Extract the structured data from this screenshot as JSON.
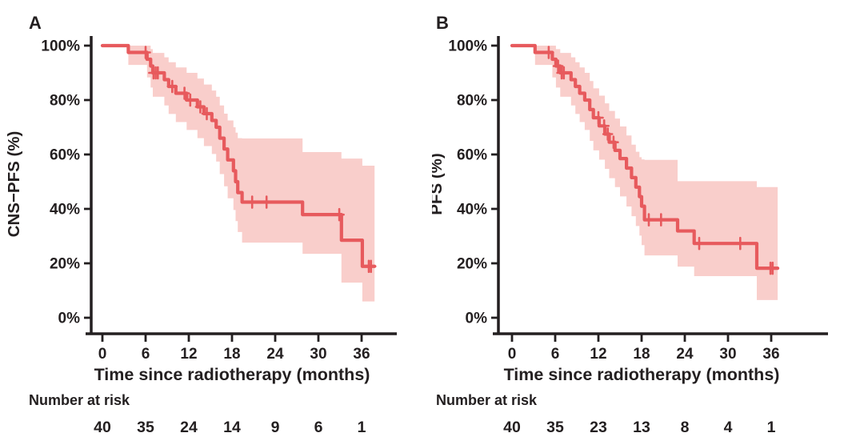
{
  "figure": {
    "background": "#FFFFFF",
    "text_color": "#231F20",
    "curve_color": "#E75A5D",
    "band_color": "#F9CECB",
    "description": "Kaplan-Meier survival curves with 95% confidence bands and censor marks"
  },
  "chart_data": [
    {
      "type": "line",
      "subtype": "kaplan-meier-step",
      "title": "A",
      "ylabel": "CNS−PFS (%)",
      "xlabel": "Time since radiotherapy (months)",
      "xlim": [
        0,
        40
      ],
      "ylim": [
        0,
        100
      ],
      "x_ticks": [
        0,
        6,
        12,
        18,
        24,
        30,
        36
      ],
      "y_ticks": [
        0,
        20,
        40,
        60,
        80,
        100
      ],
      "y_tick_suffix": "%",
      "grid": false,
      "legend": "none",
      "steps_columns": [
        "time_months",
        "survival_pct",
        "ci_lower_pct",
        "ci_upper_pct"
      ],
      "steps": [
        [
          0,
          100,
          100,
          100
        ],
        [
          3.6,
          97.5,
          92.9,
          100
        ],
        [
          6.2,
          95,
          88.3,
          100
        ],
        [
          6.7,
          92.5,
          84.6,
          98.7
        ],
        [
          7.0,
          90,
          81.2,
          97.3
        ],
        [
          8.6,
          87.5,
          78.0,
          95.7
        ],
        [
          9.2,
          85,
          74.9,
          93.9
        ],
        [
          10.2,
          82.5,
          71.9,
          92.0
        ],
        [
          11.7,
          80,
          69.0,
          90.0
        ],
        [
          13.2,
          77.5,
          66.0,
          87.9
        ],
        [
          14.1,
          75,
          63.1,
          85.7
        ],
        [
          15.2,
          72.5,
          60.2,
          83.5
        ],
        [
          15.8,
          70,
          57.4,
          81.2
        ],
        [
          16.3,
          66,
          52.8,
          78.0
        ],
        [
          16.9,
          62,
          48.3,
          75.0
        ],
        [
          17.4,
          58,
          43.9,
          72.5
        ],
        [
          18.2,
          54,
          39.6,
          70.0
        ],
        [
          18.5,
          50,
          35.5,
          68.0
        ],
        [
          18.8,
          46,
          31.5,
          66.0
        ],
        [
          19.4,
          42.5,
          27.6,
          65.9
        ],
        [
          27.8,
          37.9,
          23.5,
          60.9
        ],
        [
          33.2,
          28.5,
          12.9,
          58.5
        ],
        [
          36.1,
          18.9,
          6.0,
          55.9
        ]
      ],
      "end_time": 37.8,
      "censors_columns": [
        "time_months",
        "survival_pct"
      ],
      "censors": [
        [
          6.0,
          97.5
        ],
        [
          7.1,
          90
        ],
        [
          7.4,
          90
        ],
        [
          7.7,
          90
        ],
        [
          9.7,
          85
        ],
        [
          11.4,
          82.5
        ],
        [
          12.2,
          80
        ],
        [
          13.6,
          77.5
        ],
        [
          14.5,
          75
        ],
        [
          20.8,
          42.5
        ],
        [
          22.8,
          42.5
        ],
        [
          32.9,
          37.9
        ],
        [
          37.0,
          18.9
        ],
        [
          37.3,
          18.9
        ]
      ],
      "risk_table": {
        "label": "Number at risk",
        "times": [
          0,
          6,
          12,
          18,
          24,
          30,
          36
        ],
        "counts": [
          40,
          35,
          24,
          14,
          9,
          6,
          1
        ]
      }
    },
    {
      "type": "line",
      "subtype": "kaplan-meier-step",
      "title": "B",
      "ylabel": "PFS (%)",
      "xlabel": "Time since radiotherapy (months)",
      "xlim": [
        0,
        40
      ],
      "ylim": [
        0,
        100
      ],
      "x_ticks": [
        0,
        6,
        12,
        18,
        24,
        30,
        36
      ],
      "y_ticks": [
        0,
        20,
        40,
        60,
        80,
        100
      ],
      "y_tick_suffix": "%",
      "grid": false,
      "legend": "none",
      "steps_columns": [
        "time_months",
        "survival_pct",
        "ci_lower_pct",
        "ci_upper_pct"
      ],
      "steps": [
        [
          0,
          100,
          100,
          100
        ],
        [
          3.2,
          97.5,
          92.9,
          100
        ],
        [
          5.6,
          95,
          88.3,
          100
        ],
        [
          6.1,
          92.5,
          84.6,
          98.7
        ],
        [
          6.7,
          90,
          81.2,
          97.3
        ],
        [
          8.2,
          87.5,
          78.0,
          95.7
        ],
        [
          8.8,
          85,
          74.9,
          93.9
        ],
        [
          9.4,
          82.5,
          71.9,
          92.0
        ],
        [
          10.1,
          80,
          69.0,
          90.0
        ],
        [
          10.8,
          76.5,
          65.0,
          87.0
        ],
        [
          11.3,
          73.5,
          61.5,
          84.3
        ],
        [
          12.1,
          70.5,
          58.1,
          81.6
        ],
        [
          12.9,
          67.5,
          54.7,
          78.8
        ],
        [
          13.5,
          64.5,
          51.3,
          76.0
        ],
        [
          14.3,
          61.5,
          48.0,
          73.2
        ],
        [
          15.0,
          58.5,
          44.6,
          70.3
        ],
        [
          15.9,
          55,
          40.9,
          67.0
        ],
        [
          16.6,
          51.5,
          37.3,
          63.6
        ],
        [
          17.2,
          48,
          33.7,
          61.0
        ],
        [
          17.7,
          44.5,
          30.2,
          59.0
        ],
        [
          18.0,
          41,
          26.7,
          58.2
        ],
        [
          18.4,
          36,
          22.9,
          58.0
        ],
        [
          23.0,
          31.9,
          18.8,
          50.2
        ],
        [
          25.3,
          27.3,
          15.3,
          50.2
        ],
        [
          34.0,
          18.2,
          6.5,
          48.0
        ]
      ],
      "end_time": 36.9,
      "censors_columns": [
        "time_months",
        "survival_pct"
      ],
      "censors": [
        [
          5.1,
          97.5
        ],
        [
          6.4,
          92.5
        ],
        [
          6.9,
          90
        ],
        [
          7.2,
          90
        ],
        [
          12.0,
          73.5
        ],
        [
          12.8,
          70.5
        ],
        [
          13.3,
          67.5
        ],
        [
          14.1,
          64.5
        ],
        [
          19.0,
          36
        ],
        [
          20.7,
          36
        ],
        [
          26.0,
          27.3
        ],
        [
          31.7,
          27.3
        ],
        [
          35.9,
          18.2
        ],
        [
          36.2,
          18.2
        ]
      ],
      "risk_table": {
        "label": "Number at risk",
        "times": [
          0,
          6,
          12,
          18,
          24,
          30,
          36
        ],
        "counts": [
          40,
          35,
          23,
          13,
          8,
          4,
          1
        ]
      }
    }
  ]
}
